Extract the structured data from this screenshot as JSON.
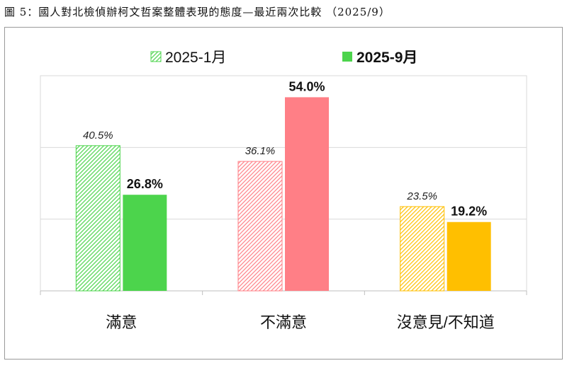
{
  "title": "圖 5：國人對北檢偵辦柯文哲案整體表現的態度—最近兩次比較 （2025/9）",
  "colors": {
    "satisfied": "#4cd44c",
    "dissatisfied": "#ff7f86",
    "unknown": "#ffbf00",
    "grid": "#d9d9d9",
    "axis": "#bfbfbf"
  },
  "chart_data": {
    "type": "bar",
    "title": "圖 5：國人對北檢偵辦柯文哲案整體表現的態度—最近兩次比較 （2025/9）",
    "categories": [
      "滿意",
      "不滿意",
      "沒意見/不知道"
    ],
    "series": [
      {
        "name": "2025-1月",
        "values": [
          40.5,
          36.1,
          23.5
        ],
        "value_labels": [
          "40.5%",
          "36.1%",
          "23.5%"
        ],
        "style": "hatched"
      },
      {
        "name": "2025-9月",
        "values": [
          26.8,
          54.0,
          19.2
        ],
        "value_labels": [
          "26.8%",
          "54.0%",
          "19.2%"
        ],
        "style": "solid"
      }
    ],
    "ylim": [
      0,
      60
    ],
    "gridlines": [
      20,
      40,
      60
    ],
    "grid": true,
    "legend_position": "top-center",
    "xlabel": "",
    "ylabel": ""
  }
}
